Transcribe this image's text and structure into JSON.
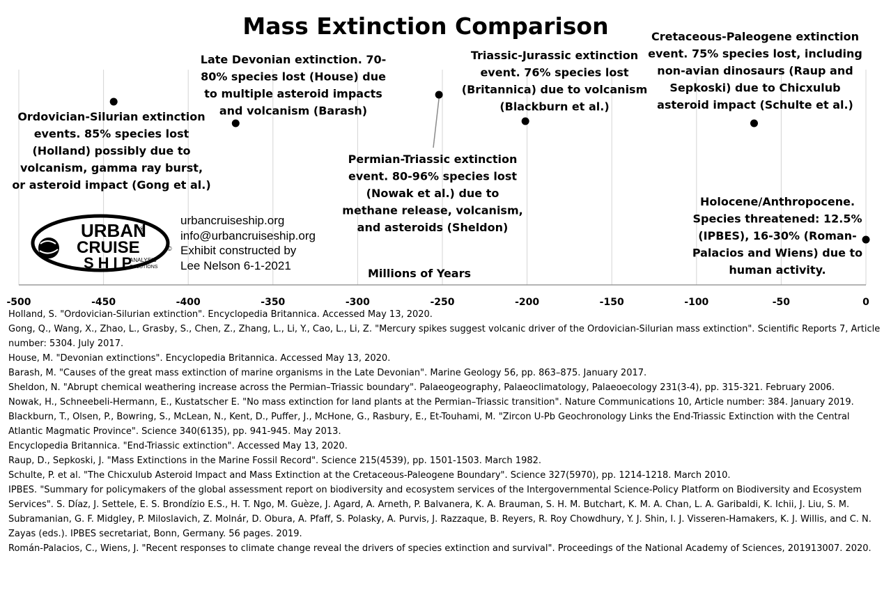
{
  "chart_data": {
    "type": "scatter",
    "title": "Mass Extinction Comparison",
    "xlabel": "Millions of Years",
    "xlim": [
      -500,
      0
    ],
    "x_ticks": [
      -500,
      -450,
      -400,
      -350,
      -300,
      -250,
      -200,
      -150,
      -100,
      -50,
      0
    ],
    "grid": "vertical",
    "points": [
      {
        "name": "Ordovician-Silurian",
        "x": -444,
        "label_lines": [
          "Ordovician-Silurian extinction",
          "events. 85% species lost",
          "(Holland) possibly due to",
          "volcanism, gamma ray burst,",
          "or asteroid impact (Gong et al.)"
        ]
      },
      {
        "name": "Late Devonian",
        "x": -372,
        "label_lines": [
          "Late Devonian extinction. 70-",
          "80% species lost (House) due",
          "to multiple asteroid impacts",
          "and volcanism (Barash)"
        ]
      },
      {
        "name": "Permian-Triassic",
        "x": -252,
        "label_lines": [
          "Permian-Triassic extinction",
          "event. 80-96% species lost",
          "(Nowak et al.) due to",
          "methane release, volcanism,",
          "and asteroids (Sheldon)"
        ]
      },
      {
        "name": "Triassic-Jurassic",
        "x": -201,
        "label_lines": [
          "Triassic-Jurassic extinction",
          "event. 76% species lost",
          "(Britannica) due to volcanism",
          "(Blackburn et al.)"
        ]
      },
      {
        "name": "Cretaceous-Paleogene",
        "x": -66,
        "label_lines": [
          "Cretaceous-Paleogene extinction",
          "event. 75% species lost, including",
          "non-avian dinosaurs (Raup and",
          "Sepkoski) due to Chicxulub",
          "asteroid impact (Schulte et al.)"
        ]
      },
      {
        "name": "Holocene/Anthropocene",
        "x": 0,
        "label_lines": [
          "Holocene/Anthropocene.",
          "Species threatened: 12.5%",
          "(IPBES), 16-30% (Roman-",
          "Palacios and Wiens) due to",
          "human activity."
        ]
      }
    ]
  },
  "logo": {
    "text_urban": "URBAN",
    "text_cruise": "CRUISE",
    "text_ship": "SHIP",
    "text_analysis": "ANALYSIS",
    "text_solutions": "SOLUTIONS",
    "registered": "®",
    "copyright": "©"
  },
  "contact": {
    "line1": "urbancruiseship.org",
    "line2": "info@urbancruiseship.org",
    "line3": "Exhibit constructed by",
    "line4": "Lee Nelson 6-1-2021"
  },
  "references": [
    "Holland, S. \"Ordovician-Silurian extinction\". Encyclopedia Britannica. Accessed May 13, 2020.",
    "Gong, Q., Wang, X., Zhao, L., Grasby, S., Chen, Z., Zhang, L., Li, Y., Cao, L., Li, Z. \"Mercury spikes suggest volcanic driver of the Ordovician-Silurian mass extinction\". Scientific Reports 7, Article number: 5304. July 2017.",
    "House, M. \"Devonian extinctions\". Encyclopedia Britannica. Accessed May 13, 2020.",
    "Barash, M. \"Causes of the great mass extinction of marine organisms in the Late Devonian\". Marine Geology 56, pp. 863–875. January 2017.",
    "Sheldon, N. \"Abrupt chemical weathering increase across the Permian–Triassic boundary\". Palaeogeography, Palaeoclimatology, Palaeoecology 231(3-4), pp. 315-321. February 2006.",
    "Nowak, H., Schneebeli-Hermann, E., Kustatscher E. \"No mass extinction for land plants at the Permian–Triassic transition\". Nature Communications 10, Article number: 384. January 2019.",
    "Blackburn, T., Olsen, P., Bowring, S., McLean, N., Kent, D., Puffer, J., McHone, G., Rasbury, E., Et-Touhami, M. \"Zircon U-Pb Geochronology Links the End-Triassic Extinction with the Central Atlantic Magmatic Province\". Science 340(6135), pp. 941-945. May 2013.",
    "Encyclopedia Britannica. \"End-Triassic extinction\". Accessed May 13, 2020.",
    "Raup, D., Sepkoski, J. \"Mass Extinctions in the Marine Fossil Record\". Science 215(4539), pp. 1501-1503. March 1982.",
    "Schulte, P. et al. \"The Chicxulub Asteroid Impact and Mass Extinction at the Cretaceous-Paleogene Boundary\". Science 327(5970), pp. 1214-1218. March 2010.",
    "IPBES. \"Summary for policymakers of the global assessment report on biodiversity and ecosystem services of the Intergovernmental Science-Policy Platform on Biodiversity and Ecosystem Services\". S. Díaz, J. Settele, E. S. Brondízio E.S., H. T. Ngo, M. Guèze, J. Agard, A. Arneth, P. Balvanera, K. A. Brauman, S. H. M. Butchart, K. M. A. Chan, L. A. Garibaldi, K. Ichii, J. Liu, S. M. Subramanian, G. F. Midgley, P. Miloslavich, Z. Molnár, D. Obura, A. Pfaff, S. Polasky, A. Purvis, J. Razzaque, B. Reyers, R. Roy Chowdhury, Y. J. Shin, I. J. Visseren-Hamakers, K. J. Willis, and C. N. Zayas (eds.). IPBES secretariat, Bonn, Germany. 56 pages. 2019.",
    "Román-Palacios, C., Wiens, J. \"Recent responses to climate change reveal the drivers of species extinction and survival\". Proceedings of the National Academy of Sciences, 201913007. 2020."
  ]
}
